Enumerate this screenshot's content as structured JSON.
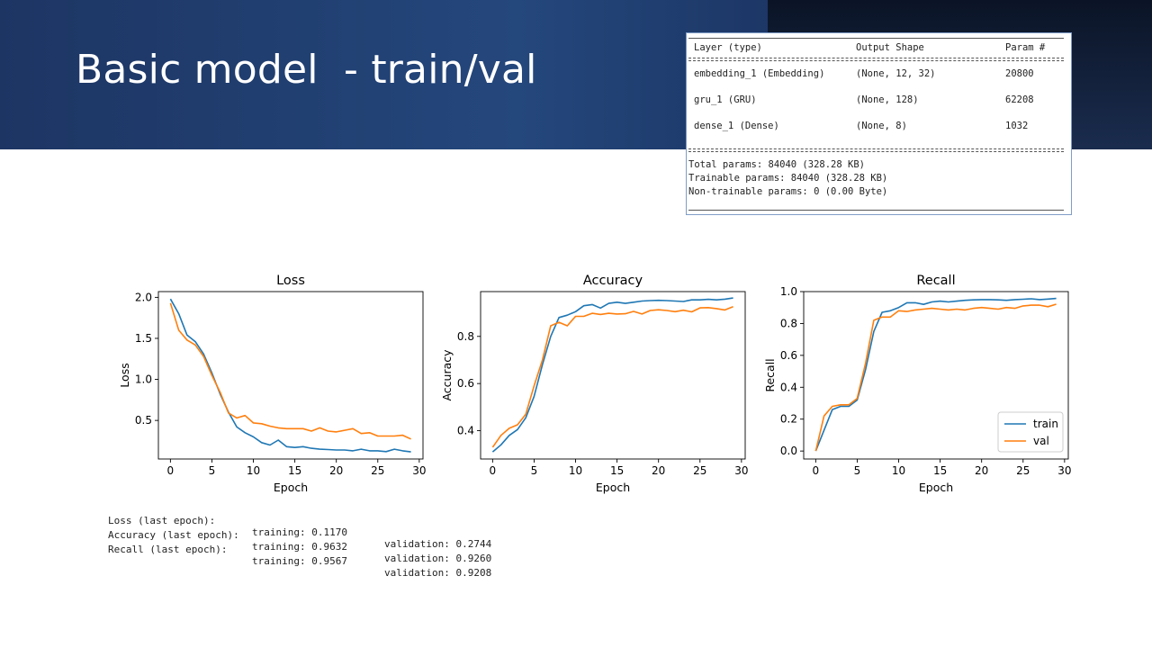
{
  "slide": {
    "title": "Basic model  - train/val"
  },
  "model_summary": {
    "headers": [
      "Layer (type)",
      "Output Shape",
      "Param #"
    ],
    "layers": [
      [
        "embedding_1 (Embedding)",
        "(None, 12, 32)",
        "20800"
      ],
      [
        "gru_1 (GRU)",
        "(None, 128)",
        "62208"
      ],
      [
        "dense_1 (Dense)",
        "(None, 8)",
        "1032"
      ]
    ],
    "totals": [
      "Total params: 84040 (328.28 KB)",
      "Trainable params: 84040 (328.28 KB)",
      "Non-trainable params: 0 (0.00 Byte)"
    ]
  },
  "chart_data": [
    {
      "type": "line",
      "title": "Loss",
      "xlabel": "Epoch",
      "ylabel": "Loss",
      "xlim": [
        -1.45,
        30.45
      ],
      "ylim": [
        0.03,
        2.07
      ],
      "xticks": [
        0,
        5,
        10,
        15,
        20,
        25,
        30
      ],
      "yticks": [
        0.5,
        1.0,
        1.5,
        2.0
      ],
      "ytick_labels": [
        "0.5",
        "1.0",
        "1.5",
        "2.0"
      ],
      "grid": false,
      "legend": false,
      "x": [
        0,
        1,
        2,
        3,
        4,
        5,
        6,
        7,
        8,
        9,
        10,
        11,
        12,
        13,
        14,
        15,
        16,
        17,
        18,
        19,
        20,
        21,
        22,
        23,
        24,
        25,
        26,
        27,
        28,
        29
      ],
      "series": [
        {
          "color": "#1f77b4",
          "values": [
            1.98,
            1.8,
            1.54,
            1.46,
            1.31,
            1.08,
            0.82,
            0.6,
            0.42,
            0.35,
            0.3,
            0.23,
            0.2,
            0.26,
            0.18,
            0.17,
            0.18,
            0.16,
            0.15,
            0.145,
            0.14,
            0.14,
            0.13,
            0.15,
            0.13,
            0.13,
            0.12,
            0.15,
            0.13,
            0.117
          ]
        },
        {
          "color": "#ff7f0e",
          "values": [
            1.93,
            1.6,
            1.48,
            1.42,
            1.28,
            1.05,
            0.84,
            0.59,
            0.53,
            0.56,
            0.47,
            0.46,
            0.43,
            0.41,
            0.4,
            0.4,
            0.4,
            0.37,
            0.41,
            0.37,
            0.36,
            0.38,
            0.4,
            0.34,
            0.35,
            0.31,
            0.31,
            0.31,
            0.32,
            0.274
          ]
        }
      ]
    },
    {
      "type": "line",
      "title": "Accuracy",
      "xlabel": "Epoch",
      "ylabel": "Accuracy",
      "xlim": [
        -1.45,
        30.45
      ],
      "ylim": [
        0.28,
        0.99
      ],
      "xticks": [
        0,
        5,
        10,
        15,
        20,
        25,
        30
      ],
      "yticks": [
        0.4,
        0.6,
        0.8
      ],
      "ytick_labels": [
        "0.4",
        "0.6",
        "0.8"
      ],
      "grid": false,
      "legend": false,
      "x": [
        0,
        1,
        2,
        3,
        4,
        5,
        6,
        7,
        8,
        9,
        10,
        11,
        12,
        13,
        14,
        15,
        16,
        17,
        18,
        19,
        20,
        21,
        22,
        23,
        24,
        25,
        26,
        27,
        28,
        29
      ],
      "series": [
        {
          "color": "#1f77b4",
          "values": [
            0.31,
            0.34,
            0.38,
            0.405,
            0.455,
            0.545,
            0.68,
            0.8,
            0.88,
            0.89,
            0.905,
            0.93,
            0.935,
            0.92,
            0.94,
            0.945,
            0.94,
            0.945,
            0.95,
            0.952,
            0.953,
            0.952,
            0.95,
            0.948,
            0.955,
            0.955,
            0.957,
            0.955,
            0.958,
            0.963
          ]
        },
        {
          "color": "#ff7f0e",
          "values": [
            0.33,
            0.38,
            0.41,
            0.425,
            0.47,
            0.59,
            0.7,
            0.845,
            0.86,
            0.845,
            0.885,
            0.885,
            0.898,
            0.893,
            0.898,
            0.895,
            0.896,
            0.906,
            0.895,
            0.91,
            0.913,
            0.91,
            0.905,
            0.911,
            0.904,
            0.921,
            0.922,
            0.918,
            0.912,
            0.926
          ]
        }
      ]
    },
    {
      "type": "line",
      "title": "Recall",
      "xlabel": "Epoch",
      "ylabel": "Recall",
      "xlim": [
        -1.45,
        30.45
      ],
      "ylim": [
        -0.05,
        1.0
      ],
      "xticks": [
        0,
        5,
        10,
        15,
        20,
        25,
        30
      ],
      "yticks": [
        0.0,
        0.2,
        0.4,
        0.6,
        0.8,
        1.0
      ],
      "ytick_labels": [
        "0.0",
        "0.2",
        "0.4",
        "0.6",
        "0.8",
        "1.0"
      ],
      "grid": false,
      "legend": true,
      "legend_position": "lower right",
      "x": [
        0,
        1,
        2,
        3,
        4,
        5,
        6,
        7,
        8,
        9,
        10,
        11,
        12,
        13,
        14,
        15,
        16,
        17,
        18,
        19,
        20,
        21,
        22,
        23,
        24,
        25,
        26,
        27,
        28,
        29
      ],
      "series": [
        {
          "name": "train",
          "color": "#1f77b4",
          "values": [
            0.0,
            0.13,
            0.26,
            0.28,
            0.28,
            0.32,
            0.51,
            0.75,
            0.87,
            0.88,
            0.9,
            0.93,
            0.93,
            0.92,
            0.935,
            0.94,
            0.935,
            0.94,
            0.945,
            0.948,
            0.95,
            0.95,
            0.948,
            0.945,
            0.95,
            0.952,
            0.955,
            0.95,
            0.953,
            0.957
          ]
        },
        {
          "name": "val",
          "color": "#ff7f0e",
          "values": [
            0.0,
            0.22,
            0.28,
            0.29,
            0.29,
            0.33,
            0.55,
            0.82,
            0.84,
            0.84,
            0.88,
            0.875,
            0.885,
            0.89,
            0.895,
            0.89,
            0.885,
            0.89,
            0.885,
            0.895,
            0.9,
            0.895,
            0.89,
            0.9,
            0.895,
            0.91,
            0.915,
            0.915,
            0.905,
            0.921
          ]
        }
      ]
    }
  ],
  "last_epoch_stats": [
    {
      "label": "Loss (last epoch):",
      "training": "training: 0.1170",
      "validation": "validation: 0.2744"
    },
    {
      "label": "Accuracy (last epoch):",
      "training": "training: 0.9632",
      "validation": "validation: 0.9260"
    },
    {
      "label": "Recall (last epoch):",
      "training": "training: 0.9567",
      "validation": "validation: 0.9208"
    }
  ]
}
